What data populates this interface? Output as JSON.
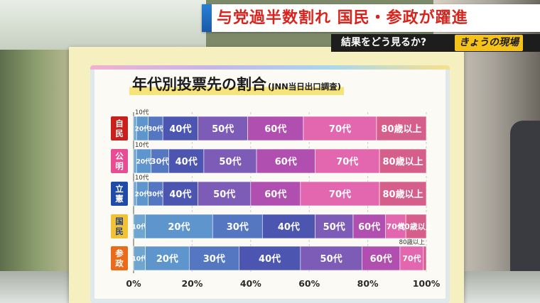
{
  "broadcast": {
    "headline": "与党過半数割れ 国民・参政が躍進",
    "subheadline": "結果をどう見るか?",
    "program_logo": "きょうの現場"
  },
  "chart_data": {
    "type": "bar",
    "stacked": true,
    "orientation": "horizontal",
    "title": "年代別投票先の割合",
    "subtitle": "(JNN当日出口調査)",
    "categories": [
      "自民",
      "公明",
      "立憲",
      "国民",
      "参政"
    ],
    "age_groups": [
      "10代",
      "20代",
      "30代",
      "40代",
      "50代",
      "60代",
      "70代",
      "80歳以上"
    ],
    "segment_labels": {
      "自民": [
        "10代",
        "20代",
        "30代",
        "40代",
        "50代",
        "60代",
        "70代",
        "80歳以上"
      ],
      "公明": [
        "10代",
        "20代",
        "30代",
        "40代",
        "50代",
        "60代",
        "70代",
        "80歳以上"
      ],
      "立憲": [
        "10代",
        "20代",
        "30代",
        "40代",
        "50代",
        "60代",
        "70代",
        "80歳以上"
      ],
      "国民": [
        "10代",
        "20代",
        "30代",
        "40代",
        "50代",
        "60代",
        "70代",
        "80歳以上"
      ],
      "参政": [
        "10代",
        "20代",
        "30代",
        "40代",
        "50代",
        "60代",
        "70代",
        "80歳以上"
      ]
    },
    "series": [
      {
        "name": "10代",
        "values": [
          1,
          1,
          1,
          4,
          4
        ]
      },
      {
        "name": "20代",
        "values": [
          4,
          5,
          4,
          23,
          15
        ]
      },
      {
        "name": "30代",
        "values": [
          5,
          6,
          5,
          17,
          17
        ]
      },
      {
        "name": "40代",
        "values": [
          12,
          12,
          12,
          18,
          21
        ]
      },
      {
        "name": "50代",
        "values": [
          17,
          18,
          18,
          13,
          21
        ]
      },
      {
        "name": "60代",
        "values": [
          19,
          20,
          17,
          11,
          13
        ]
      },
      {
        "name": "70代",
        "values": [
          25,
          22,
          27,
          7,
          8
        ]
      },
      {
        "name": "80歳以上",
        "values": [
          17,
          16,
          16,
          7,
          1
        ]
      }
    ],
    "xlim": [
      0,
      100
    ],
    "x_ticks": [
      "0%",
      "20%",
      "40%",
      "60%",
      "80%",
      "100%"
    ],
    "colors": {
      "10代": "#6fa6cf",
      "20代": "#5e95cc",
      "30代": "#5577c2",
      "40代": "#4c56b0",
      "50代": "#7d5cb8",
      "60代": "#b14fb0",
      "70代": "#e267ae",
      "80歳以上": "#d65e8a"
    },
    "party_label_colors": {
      "自民": "#c9201c",
      "公明": "#ea4c93",
      "立憲": "#1f4ba8",
      "国民": "#f2c234",
      "参政": "#ea6b1a"
    }
  }
}
